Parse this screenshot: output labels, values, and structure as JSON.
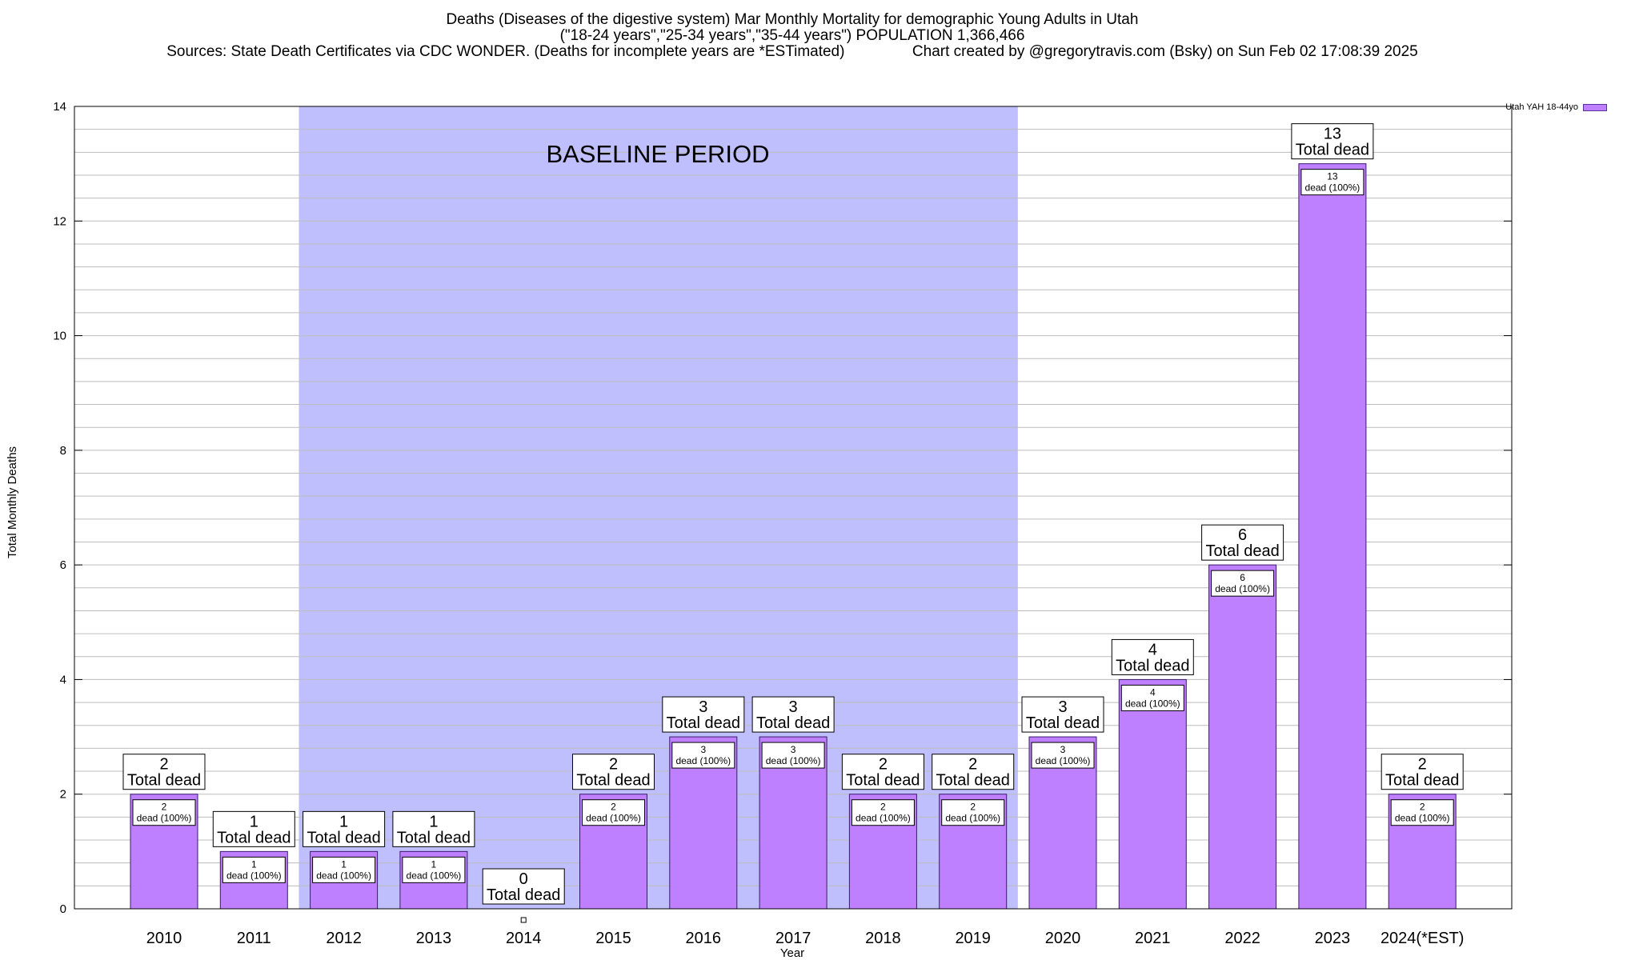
{
  "titles": {
    "line1": "Deaths (Diseases of the digestive system) Mar Monthly Mortality for demographic Young Adults in Utah",
    "line2": "(\"18-24 years\",\"25-34 years\",\"35-44 years\") POPULATION 1,366,466",
    "line3": "Sources: State Death Certificates via CDC WONDER. (Deaths for incomplete years are *ESTimated)                Chart created by @gregorytravis.com (Bsky) on Sun Feb 02 17:08:39 2025"
  },
  "legend": {
    "label": "Utah YAH 18-44yo",
    "color": "#bf80ff"
  },
  "chart_data": {
    "type": "bar",
    "categories": [
      "2010",
      "2011",
      "2012",
      "2013",
      "2014",
      "2015",
      "2016",
      "2017",
      "2018",
      "2019",
      "2020",
      "2021",
      "2022",
      "2023",
      "2024(*EST)"
    ],
    "series": [
      {
        "name": "Utah YAH 18-44yo",
        "values": [
          2,
          1,
          1,
          1,
          0,
          2,
          3,
          3,
          2,
          2,
          3,
          4,
          6,
          13,
          2
        ]
      }
    ],
    "xlabel": "Year",
    "ylabel": "Total Monthly Deaths",
    "ylim": [
      0,
      14
    ],
    "yticks": [
      0,
      2,
      4,
      6,
      8,
      10,
      12,
      14
    ],
    "total_label": "Total dead",
    "inner_label_suffix": "dead (100%)",
    "baseline": {
      "label": "BASELINE PERIOD",
      "from": "2012",
      "to": "2019"
    },
    "grid": true,
    "legend_position": "top-right",
    "colors": {
      "bar": "#bf80ff",
      "bar_stroke": "#3b1a6e",
      "baseline_band": "#bfbffd"
    }
  }
}
